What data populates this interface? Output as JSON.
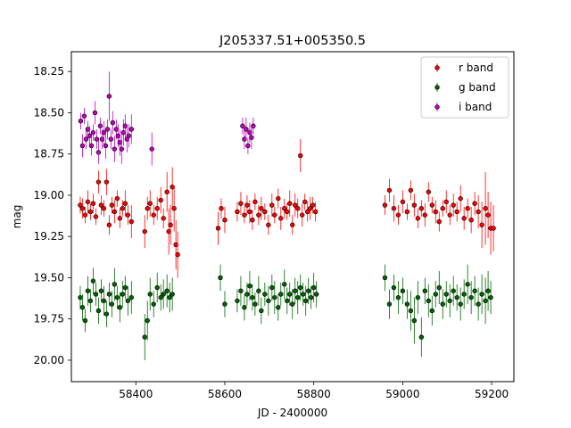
{
  "chart_data": {
    "type": "scatter",
    "title": "J205337.51+005350.5",
    "xlabel": "JD - 2400000",
    "ylabel": "mag",
    "xlim": [
      58255,
      59250
    ],
    "ylim": [
      20.13,
      18.13
    ],
    "y_inverted": true,
    "x_ticks": [
      58400,
      58600,
      58800,
      59000,
      59200
    ],
    "x_tick_labels": [
      "58400",
      "58600",
      "58800",
      "59000",
      "59200"
    ],
    "y_ticks": [
      18.25,
      18.5,
      18.75,
      19.0,
      19.25,
      19.5,
      19.75,
      20.0
    ],
    "y_tick_labels": [
      "18.25",
      "18.50",
      "18.75",
      "19.00",
      "19.25",
      "19.50",
      "19.75",
      "20.00"
    ],
    "grid": false,
    "legend_position": "top-right",
    "series": [
      {
        "name": "r band",
        "color": "#ff0000",
        "point": [
          58300,
          19.06
        ],
        "x": [
          58275,
          58280,
          58286,
          58292,
          58298,
          58304,
          58310,
          58316,
          58322,
          58328,
          58334,
          58340,
          58346,
          58352,
          58358,
          58364,
          58370,
          58376,
          58382,
          58390,
          58420,
          58426,
          58432,
          58440,
          58448,
          58456,
          58462,
          58470,
          58474,
          58478,
          58482,
          58486,
          58490,
          58494,
          58585,
          58592,
          58600,
          58628,
          58636,
          58644,
          58650,
          58656,
          58662,
          58668,
          58676,
          58682,
          58690,
          58698,
          58706,
          58712,
          58720,
          58726,
          58734,
          58740,
          58746,
          58752,
          58758,
          58764,
          58770,
          58774,
          58780,
          58786,
          58792,
          58798,
          58804,
          58960,
          58970,
          58980,
          58990,
          59000,
          59010,
          59018,
          59026,
          59034,
          59042,
          59050,
          59058,
          59066,
          59074,
          59082,
          59090,
          59098,
          59106,
          59114,
          59122,
          59130,
          59138,
          59146,
          59154,
          59162,
          59170,
          59178,
          59186,
          59192,
          59198,
          59204
        ],
        "y": [
          19.06,
          19.08,
          19.12,
          19.04,
          19.1,
          19.05,
          19.13,
          18.92,
          19.06,
          19.08,
          18.92,
          19.18,
          19.06,
          19.1,
          19.02,
          19.14,
          19.08,
          19.05,
          19.12,
          19.16,
          19.22,
          19.08,
          19.05,
          19.12,
          19.08,
          19.03,
          19.14,
          18.98,
          19.22,
          19.18,
          18.95,
          19.08,
          19.3,
          19.36,
          19.2,
          19.08,
          19.15,
          19.1,
          19.05,
          19.12,
          19.06,
          19.1,
          19.15,
          19.04,
          19.12,
          19.08,
          19.1,
          19.18,
          19.06,
          19.12,
          19.02,
          19.14,
          19.08,
          19.1,
          19.05,
          19.18,
          19.06,
          19.08,
          18.76,
          19.12,
          19.04,
          19.1,
          19.08,
          19.06,
          19.1,
          19.06,
          18.97,
          19.08,
          19.12,
          19.04,
          19.1,
          18.97,
          19.06,
          19.14,
          19.08,
          19.12,
          18.98,
          19.06,
          19.1,
          19.16,
          19.08,
          19.04,
          19.12,
          19.06,
          19.1,
          19.02,
          19.14,
          19.08,
          19.15,
          19.05,
          19.1,
          19.18,
          19.08,
          19.12,
          19.2,
          19.2
        ],
        "err": [
          0.05,
          0.06,
          0.05,
          0.07,
          0.05,
          0.06,
          0.05,
          0.07,
          0.06,
          0.05,
          0.08,
          0.06,
          0.05,
          0.07,
          0.05,
          0.06,
          0.05,
          0.08,
          0.06,
          0.1,
          0.1,
          0.07,
          0.08,
          0.06,
          0.07,
          0.08,
          0.06,
          0.12,
          0.14,
          0.12,
          0.12,
          0.14,
          0.15,
          0.14,
          0.1,
          0.06,
          0.08,
          0.06,
          0.07,
          0.05,
          0.06,
          0.07,
          0.06,
          0.05,
          0.06,
          0.07,
          0.05,
          0.06,
          0.07,
          0.05,
          0.06,
          0.07,
          0.06,
          0.05,
          0.08,
          0.06,
          0.07,
          0.06,
          0.1,
          0.07,
          0.05,
          0.06,
          0.07,
          0.05,
          0.06,
          0.06,
          0.07,
          0.08,
          0.06,
          0.07,
          0.05,
          0.06,
          0.07,
          0.06,
          0.05,
          0.07,
          0.06,
          0.05,
          0.07,
          0.06,
          0.05,
          0.07,
          0.06,
          0.07,
          0.06,
          0.08,
          0.07,
          0.06,
          0.08,
          0.07,
          0.1,
          0.14,
          0.22,
          0.14,
          0.16,
          0.14
        ]
      },
      {
        "name": "g band",
        "color": "#006400",
        "point": [
          58300,
          19.6
        ],
        "x": [
          58275,
          58280,
          58286,
          58292,
          58298,
          58304,
          58310,
          58316,
          58322,
          58328,
          58334,
          58340,
          58346,
          58352,
          58358,
          58364,
          58370,
          58376,
          58382,
          58390,
          58420,
          58426,
          58432,
          58440,
          58448,
          58456,
          58462,
          58470,
          58476,
          58482,
          58590,
          58600,
          58628,
          58636,
          58644,
          58650,
          58656,
          58662,
          58668,
          58676,
          58682,
          58690,
          58698,
          58706,
          58712,
          58720,
          58726,
          58734,
          58740,
          58746,
          58752,
          58758,
          58764,
          58770,
          58776,
          58782,
          58788,
          58794,
          58800,
          58806,
          58960,
          58970,
          58980,
          58990,
          59000,
          59010,
          59018,
          59026,
          59034,
          59042,
          59050,
          59058,
          59066,
          59074,
          59082,
          59090,
          59098,
          59106,
          59114,
          59122,
          59130,
          59138,
          59146,
          59154,
          59162,
          59170,
          59178,
          59186,
          59192,
          59198
        ],
        "y": [
          19.62,
          19.68,
          19.76,
          19.58,
          19.64,
          19.52,
          19.6,
          19.7,
          19.58,
          19.64,
          19.72,
          19.6,
          19.66,
          19.54,
          19.62,
          19.68,
          19.6,
          19.56,
          19.64,
          19.62,
          19.86,
          19.76,
          19.6,
          19.66,
          19.56,
          19.62,
          19.6,
          19.58,
          19.62,
          19.6,
          19.5,
          19.66,
          19.64,
          19.58,
          19.68,
          19.6,
          19.55,
          19.62,
          19.66,
          19.58,
          19.7,
          19.6,
          19.64,
          19.56,
          19.62,
          19.68,
          19.6,
          19.54,
          19.64,
          19.6,
          19.66,
          19.58,
          19.62,
          19.56,
          19.6,
          19.64,
          19.58,
          19.62,
          19.56,
          19.6,
          19.5,
          19.66,
          19.56,
          19.62,
          19.58,
          19.66,
          19.7,
          19.76,
          19.62,
          19.86,
          19.58,
          19.64,
          19.7,
          19.6,
          19.56,
          19.66,
          19.6,
          19.64,
          19.58,
          19.62,
          19.66,
          19.6,
          19.54,
          19.62,
          19.58,
          19.66,
          19.6,
          19.64,
          19.58,
          19.62
        ],
        "err": [
          0.07,
          0.08,
          0.07,
          0.09,
          0.07,
          0.08,
          0.07,
          0.08,
          0.07,
          0.09,
          0.08,
          0.07,
          0.08,
          0.1,
          0.07,
          0.09,
          0.08,
          0.07,
          0.09,
          0.1,
          0.14,
          0.12,
          0.1,
          0.08,
          0.09,
          0.08,
          0.09,
          0.1,
          0.09,
          0.1,
          0.08,
          0.08,
          0.07,
          0.09,
          0.08,
          0.07,
          0.09,
          0.08,
          0.07,
          0.09,
          0.08,
          0.07,
          0.09,
          0.08,
          0.1,
          0.08,
          0.07,
          0.09,
          0.08,
          0.07,
          0.09,
          0.08,
          0.1,
          0.08,
          0.07,
          0.09,
          0.08,
          0.07,
          0.09,
          0.08,
          0.08,
          0.09,
          0.08,
          0.1,
          0.08,
          0.09,
          0.12,
          0.14,
          0.1,
          0.12,
          0.08,
          0.1,
          0.09,
          0.08,
          0.1,
          0.09,
          0.08,
          0.1,
          0.09,
          0.08,
          0.1,
          0.09,
          0.12,
          0.1,
          0.09,
          0.1,
          0.12,
          0.14,
          0.12,
          0.1
        ]
      },
      {
        "name": "i band",
        "color": "#c000c0",
        "point": [
          58300,
          18.62
        ],
        "x": [
          58276,
          58280,
          58284,
          58288,
          58292,
          58296,
          58300,
          58304,
          58308,
          58312,
          58316,
          58320,
          58324,
          58328,
          58332,
          58336,
          58340,
          58344,
          58348,
          58352,
          58356,
          58360,
          58364,
          58368,
          58372,
          58376,
          58380,
          58384,
          58390,
          58436,
          58640,
          58644,
          58648,
          58652,
          58656,
          58660,
          58664
        ],
        "y": [
          18.55,
          18.7,
          18.52,
          18.66,
          18.6,
          18.64,
          18.7,
          18.62,
          18.5,
          18.66,
          18.74,
          18.58,
          18.66,
          18.62,
          18.7,
          18.6,
          18.4,
          18.66,
          18.56,
          18.72,
          18.6,
          18.64,
          18.68,
          18.72,
          18.62,
          18.58,
          18.66,
          18.64,
          18.6,
          18.72,
          18.58,
          18.66,
          18.6,
          18.7,
          18.62,
          18.65,
          18.58
        ],
        "err": [
          0.05,
          0.07,
          0.05,
          0.06,
          0.05,
          0.06,
          0.06,
          0.05,
          0.07,
          0.06,
          0.07,
          0.05,
          0.06,
          0.07,
          0.08,
          0.06,
          0.15,
          0.06,
          0.07,
          0.08,
          0.06,
          0.07,
          0.08,
          0.09,
          0.08,
          0.07,
          0.08,
          0.07,
          0.09,
          0.1,
          0.05,
          0.06,
          0.07,
          0.05,
          0.06,
          0.07,
          0.05
        ]
      }
    ]
  }
}
